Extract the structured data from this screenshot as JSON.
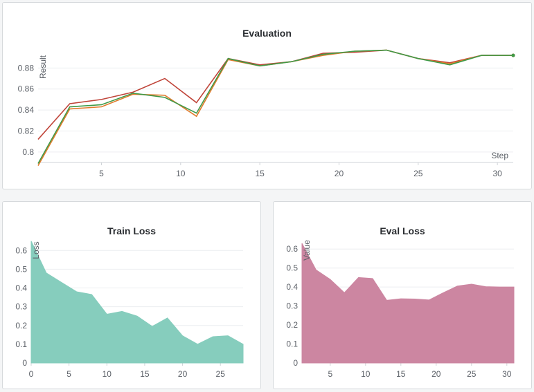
{
  "panels": {
    "evaluation": {
      "title": "Evaluation"
    },
    "train_loss": {
      "title": "Train Loss"
    },
    "eval_loss": {
      "title": "Eval Loss"
    }
  },
  "chart_data": [
    {
      "type": "line",
      "title": "Evaluation",
      "xlabel": "Step",
      "ylabel": "Result",
      "xlim": [
        1,
        31
      ],
      "ylim": [
        0.79,
        0.898
      ],
      "xticks": [
        5,
        10,
        15,
        20,
        25,
        30
      ],
      "yticks": [
        0.8,
        0.82,
        0.84,
        0.86,
        0.88
      ],
      "ytick_labels": [
        "0.8",
        "0.82",
        "0.84",
        "0.86",
        "0.88"
      ],
      "grid": true,
      "x": [
        1,
        3,
        5,
        7,
        9,
        11,
        13,
        15,
        17,
        19,
        21,
        23,
        25,
        27,
        29,
        31
      ],
      "series": [
        {
          "color": "#c0453a",
          "values": [
            0.812,
            0.846,
            0.85,
            0.857,
            0.87,
            0.847,
            0.889,
            0.883,
            0.886,
            0.894,
            0.895,
            0.897,
            0.889,
            0.885,
            0.892,
            0.892
          ]
        },
        {
          "color": "#e07b2c",
          "values": [
            0.787,
            0.841,
            0.843,
            0.855,
            0.854,
            0.834,
            0.888,
            0.882,
            0.886,
            0.892,
            0.896,
            0.897,
            0.889,
            0.884,
            0.892,
            0.892
          ]
        },
        {
          "color": "#3f9a48",
          "values": [
            0.789,
            0.843,
            0.845,
            0.856,
            0.852,
            0.837,
            0.889,
            0.882,
            0.886,
            0.893,
            0.896,
            0.897,
            0.889,
            0.883,
            0.892,
            0.892
          ]
        }
      ]
    },
    {
      "type": "area",
      "title": "Train Loss",
      "ylabel": "Loss",
      "xlim": [
        0,
        28
      ],
      "ylim": [
        0,
        0.66
      ],
      "xticks": [
        0,
        5,
        10,
        15,
        20,
        25
      ],
      "yticks": [
        0,
        0.1,
        0.2,
        0.3,
        0.4,
        0.5,
        0.6
      ],
      "ytick_labels": [
        "0",
        "0.1",
        "0.2",
        "0.3",
        "0.4",
        "0.5",
        "0.6"
      ],
      "grid": true,
      "color": "#86cdbd",
      "x": [
        0,
        2,
        4,
        6,
        8,
        10,
        12,
        14,
        16,
        18,
        20,
        22,
        24,
        26,
        28
      ],
      "values": [
        0.65,
        0.48,
        0.43,
        0.38,
        0.365,
        0.26,
        0.275,
        0.25,
        0.195,
        0.24,
        0.145,
        0.1,
        0.14,
        0.145,
        0.1
      ]
    },
    {
      "type": "area",
      "title": "Eval Loss",
      "ylabel": "Value",
      "xlim": [
        1,
        31
      ],
      "ylim": [
        0,
        0.63
      ],
      "xticks": [
        5,
        10,
        15,
        20,
        25,
        30
      ],
      "yticks": [
        0,
        0.1,
        0.2,
        0.3,
        0.4,
        0.5,
        0.6
      ],
      "ytick_labels": [
        "0",
        "0.1",
        "0.2",
        "0.3",
        "0.4",
        "0.5",
        "0.6"
      ],
      "grid": true,
      "color": "#cc86a1",
      "x": [
        1,
        3,
        5,
        7,
        9,
        11,
        13,
        15,
        17,
        19,
        21,
        23,
        25,
        27,
        29,
        31
      ],
      "values": [
        0.63,
        0.49,
        0.44,
        0.37,
        0.45,
        0.445,
        0.33,
        0.338,
        0.337,
        0.332,
        0.37,
        0.405,
        0.415,
        0.402,
        0.4,
        0.4
      ]
    }
  ]
}
